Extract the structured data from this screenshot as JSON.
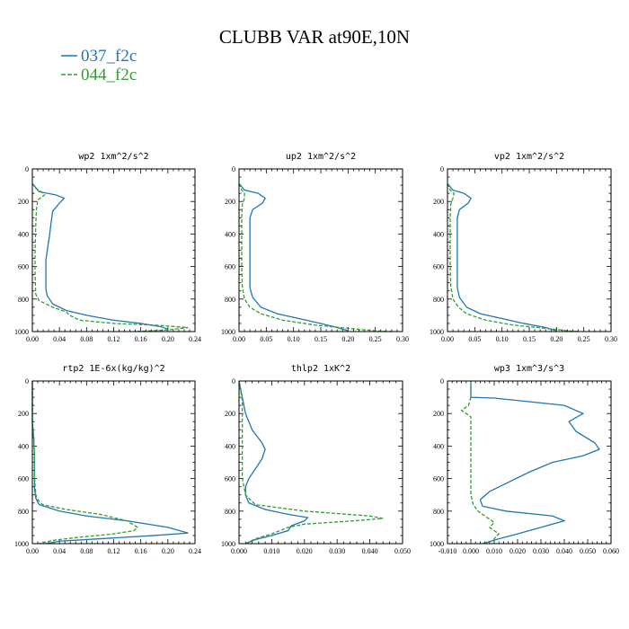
{
  "title": "CLUBB VAR at90E,10N",
  "colors": {
    "s037": "#1f77b4",
    "s044": "#2ca02c"
  },
  "legend": [
    {
      "name": "037_f2c",
      "color": "#1f77b4",
      "dash": false
    },
    {
      "name": "044_f2c",
      "color": "#2ca02c",
      "dash": true
    }
  ],
  "chart_data": [
    {
      "type": "line",
      "title": "wp2  1xm^2/s^2",
      "xlim": [
        0,
        0.24
      ],
      "xticks": [
        "0.00",
        "0.04",
        "0.08",
        "0.12",
        "0.16",
        "0.20",
        "0.24"
      ],
      "ylim": [
        0,
        1000
      ],
      "y_inverted": true,
      "yticks": [
        "0",
        "200",
        "400",
        "600",
        "800",
        "1000"
      ],
      "series": [
        {
          "name": "037_f2c",
          "points": [
            [
              0,
              90
            ],
            [
              0.01,
              140
            ],
            [
              0.035,
              160
            ],
            [
              0.047,
              180
            ],
            [
              0.04,
              210
            ],
            [
              0.03,
              260
            ],
            [
              0.028,
              320
            ],
            [
              0.025,
              420
            ],
            [
              0.022,
              500
            ],
            [
              0.02,
              560
            ],
            [
              0.02,
              650
            ],
            [
              0.02,
              740
            ],
            [
              0.022,
              780
            ],
            [
              0.03,
              830
            ],
            [
              0.05,
              870
            ],
            [
              0.08,
              900
            ],
            [
              0.12,
              930
            ],
            [
              0.16,
              950
            ],
            [
              0.19,
              970
            ],
            [
              0.2,
              985
            ],
            [
              0.2,
              1000
            ]
          ]
        },
        {
          "name": "044_f2c",
          "points": [
            [
              0,
              90
            ],
            [
              0.005,
              120
            ],
            [
              0.013,
              140
            ],
            [
              0.018,
              160
            ],
            [
              0.008,
              190
            ],
            [
              0.006,
              250
            ],
            [
              0.005,
              350
            ],
            [
              0.004,
              500
            ],
            [
              0.004,
              650
            ],
            [
              0.005,
              770
            ],
            [
              0.01,
              810
            ],
            [
              0.03,
              850
            ],
            [
              0.05,
              880
            ],
            [
              0.055,
              900
            ],
            [
              0.07,
              930
            ],
            [
              0.12,
              950
            ],
            [
              0.18,
              960
            ],
            [
              0.23,
              975
            ],
            [
              0.2,
              990
            ],
            [
              0.15,
              1000
            ]
          ]
        }
      ]
    },
    {
      "type": "line",
      "title": "up2  1xm^2/s^2",
      "xlim": [
        0,
        0.3
      ],
      "xticks": [
        "0.00",
        "0.05",
        "0.10",
        "0.15",
        "0.20",
        "0.25",
        "0.30"
      ],
      "ylim": [
        0,
        1000
      ],
      "y_inverted": true,
      "yticks": [
        "0",
        "200",
        "400",
        "600",
        "800",
        "1000"
      ],
      "series": [
        {
          "name": "037_f2c",
          "points": [
            [
              0,
              90
            ],
            [
              0.01,
              130
            ],
            [
              0.035,
              150
            ],
            [
              0.048,
              180
            ],
            [
              0.043,
              210
            ],
            [
              0.025,
              250
            ],
            [
              0.02,
              300
            ],
            [
              0.02,
              420
            ],
            [
              0.02,
              550
            ],
            [
              0.02,
              650
            ],
            [
              0.02,
              730
            ],
            [
              0.025,
              790
            ],
            [
              0.04,
              850
            ],
            [
              0.07,
              890
            ],
            [
              0.11,
              920
            ],
            [
              0.15,
              950
            ],
            [
              0.18,
              975
            ],
            [
              0.2,
              995
            ],
            [
              0.2,
              1000
            ]
          ]
        },
        {
          "name": "044_f2c",
          "points": [
            [
              0,
              90
            ],
            [
              0.005,
              130
            ],
            [
              0.01,
              150
            ],
            [
              0.01,
              180
            ],
            [
              0.006,
              220
            ],
            [
              0.005,
              300
            ],
            [
              0.005,
              450
            ],
            [
              0.005,
              600
            ],
            [
              0.006,
              720
            ],
            [
              0.01,
              800
            ],
            [
              0.02,
              850
            ],
            [
              0.04,
              890
            ],
            [
              0.08,
              930
            ],
            [
              0.14,
              960
            ],
            [
              0.2,
              980
            ],
            [
              0.25,
              995
            ],
            [
              0.28,
              1000
            ]
          ]
        }
      ]
    },
    {
      "type": "line",
      "title": "vp2  1xm^2/s^2",
      "xlim": [
        0,
        0.3
      ],
      "xticks": [
        "0.00",
        "0.05",
        "0.10",
        "0.15",
        "0.20",
        "0.25",
        "0.30"
      ],
      "ylim": [
        0,
        1000
      ],
      "y_inverted": true,
      "yticks": [
        "0",
        "200",
        "400",
        "600",
        "800",
        "1000"
      ],
      "series": [
        {
          "name": "037_f2c",
          "points": [
            [
              0,
              90
            ],
            [
              0.01,
              130
            ],
            [
              0.03,
              150
            ],
            [
              0.043,
              180
            ],
            [
              0.038,
              210
            ],
            [
              0.022,
              250
            ],
            [
              0.018,
              300
            ],
            [
              0.018,
              420
            ],
            [
              0.018,
              550
            ],
            [
              0.018,
              650
            ],
            [
              0.018,
              730
            ],
            [
              0.022,
              790
            ],
            [
              0.035,
              850
            ],
            [
              0.06,
              890
            ],
            [
              0.1,
              920
            ],
            [
              0.14,
              950
            ],
            [
              0.18,
              975
            ],
            [
              0.2,
              995
            ],
            [
              0.2,
              1000
            ]
          ]
        },
        {
          "name": "044_f2c",
          "points": [
            [
              0,
              90
            ],
            [
              0.005,
              130
            ],
            [
              0.012,
              150
            ],
            [
              0.01,
              180
            ],
            [
              0.006,
              220
            ],
            [
              0.005,
              300
            ],
            [
              0.005,
              450
            ],
            [
              0.005,
              600
            ],
            [
              0.006,
              720
            ],
            [
              0.01,
              800
            ],
            [
              0.02,
              850
            ],
            [
              0.035,
              890
            ],
            [
              0.07,
              930
            ],
            [
              0.12,
              960
            ],
            [
              0.18,
              980
            ],
            [
              0.22,
              995
            ],
            [
              0.24,
              1000
            ]
          ]
        }
      ]
    },
    {
      "type": "line",
      "title": "rtp2  1E-6x(kg/kg)^2",
      "xlim": [
        0,
        0.24
      ],
      "xticks": [
        "0.00",
        "0.04",
        "0.08",
        "0.12",
        "0.16",
        "0.20",
        "0.24"
      ],
      "ylim": [
        0,
        1000
      ],
      "y_inverted": true,
      "yticks": [
        "0",
        "200",
        "400",
        "600",
        "800",
        "1000"
      ],
      "series": [
        {
          "name": "037_f2c",
          "points": [
            [
              0,
              0
            ],
            [
              0,
              250
            ],
            [
              0.002,
              350
            ],
            [
              0.003,
              450
            ],
            [
              0.003,
              550
            ],
            [
              0.003,
              650
            ],
            [
              0.005,
              720
            ],
            [
              0.01,
              760
            ],
            [
              0.04,
              800
            ],
            [
              0.08,
              830
            ],
            [
              0.14,
              860
            ],
            [
              0.2,
              900
            ],
            [
              0.23,
              935
            ],
            [
              0.18,
              950
            ],
            [
              0.1,
              970
            ],
            [
              0.04,
              985
            ],
            [
              0.02,
              1000
            ]
          ]
        },
        {
          "name": "044_f2c",
          "points": [
            [
              0,
              0
            ],
            [
              0,
              250
            ],
            [
              0.002,
              350
            ],
            [
              0.003,
              450
            ],
            [
              0.003,
              550
            ],
            [
              0.004,
              650
            ],
            [
              0.006,
              720
            ],
            [
              0.015,
              760
            ],
            [
              0.05,
              790
            ],
            [
              0.1,
              820
            ],
            [
              0.14,
              860
            ],
            [
              0.155,
              900
            ],
            [
              0.15,
              920
            ],
            [
              0.12,
              940
            ],
            [
              0.07,
              960
            ],
            [
              0.03,
              980
            ],
            [
              0.01,
              1000
            ]
          ]
        }
      ]
    },
    {
      "type": "line",
      "title": "thlp2  1xK^2",
      "xlim": [
        0,
        0.05
      ],
      "xticks": [
        "0.000",
        "0.010",
        "0.020",
        "0.030",
        "0.040",
        "0.050"
      ],
      "ylim": [
        0,
        1000
      ],
      "y_inverted": true,
      "yticks": [
        "0",
        "200",
        "400",
        "600",
        "800",
        "1000"
      ],
      "series": [
        {
          "name": "037_f2c",
          "points": [
            [
              0,
              0
            ],
            [
              0.001,
              100
            ],
            [
              0.002,
              200
            ],
            [
              0.004,
              300
            ],
            [
              0.007,
              380
            ],
            [
              0.008,
              420
            ],
            [
              0.007,
              480
            ],
            [
              0.005,
              540
            ],
            [
              0.003,
              600
            ],
            [
              0.002,
              650
            ],
            [
              0.002,
              700
            ],
            [
              0.003,
              750
            ],
            [
              0.008,
              790
            ],
            [
              0.015,
              820
            ],
            [
              0.021,
              840
            ],
            [
              0.02,
              860
            ],
            [
              0.016,
              890
            ],
            [
              0.015,
              920
            ],
            [
              0.01,
              950
            ],
            [
              0.005,
              975
            ],
            [
              0.002,
              1000
            ]
          ]
        },
        {
          "name": "044_f2c",
          "points": [
            [
              0,
              0
            ],
            [
              0.001,
              120
            ],
            [
              0.001,
              200
            ],
            [
              0.001,
              300
            ],
            [
              0.001,
              400
            ],
            [
              0.001,
              500
            ],
            [
              0.001,
              600
            ],
            [
              0.002,
              700
            ],
            [
              0.005,
              760
            ],
            [
              0.02,
              800
            ],
            [
              0.04,
              830
            ],
            [
              0.044,
              845
            ],
            [
              0.035,
              860
            ],
            [
              0.02,
              880
            ],
            [
              0.015,
              900
            ],
            [
              0.01,
              940
            ],
            [
              0.005,
              970
            ],
            [
              0.002,
              1000
            ]
          ]
        }
      ]
    },
    {
      "type": "line",
      "title": "wp3  1xm^3/s^3",
      "xlim": [
        -0.01,
        0.06
      ],
      "xticks": [
        "-0.010",
        "0.000",
        "0.010",
        "0.020",
        "0.030",
        "0.040",
        "0.050",
        "0.060"
      ],
      "ylim": [
        0,
        1000
      ],
      "y_inverted": true,
      "yticks": [
        "0",
        "200",
        "400",
        "600",
        "800",
        "1000"
      ],
      "series": [
        {
          "name": "037_f2c",
          "points": [
            [
              0,
              0
            ],
            [
              0,
              100
            ],
            [
              0.01,
              105
            ],
            [
              0.04,
              150
            ],
            [
              0.048,
              200
            ],
            [
              0.042,
              250
            ],
            [
              0.045,
              310
            ],
            [
              0.053,
              380
            ],
            [
              0.055,
              420
            ],
            [
              0.048,
              460
            ],
            [
              0.035,
              500
            ],
            [
              0.025,
              560
            ],
            [
              0.015,
              630
            ],
            [
              0.008,
              680
            ],
            [
              0.004,
              730
            ],
            [
              0.005,
              770
            ],
            [
              0.015,
              800
            ],
            [
              0.035,
              830
            ],
            [
              0.04,
              860
            ],
            [
              0.03,
              900
            ],
            [
              0.02,
              940
            ],
            [
              0.012,
              970
            ],
            [
              0.005,
              1000
            ]
          ]
        },
        {
          "name": "044_f2c",
          "points": [
            [
              0,
              0
            ],
            [
              0,
              100
            ],
            [
              -0.001,
              150
            ],
            [
              -0.004,
              180
            ],
            [
              -0.002,
              200
            ],
            [
              0,
              220
            ],
            [
              0,
              300
            ],
            [
              0,
              450
            ],
            [
              0,
              600
            ],
            [
              0,
              700
            ],
            [
              0.001,
              760
            ],
            [
              0.003,
              800
            ],
            [
              0.005,
              820
            ],
            [
              0.01,
              870
            ],
            [
              0.008,
              900
            ],
            [
              0.012,
              940
            ],
            [
              0.01,
              970
            ],
            [
              0.01,
              1000
            ]
          ]
        }
      ]
    }
  ]
}
